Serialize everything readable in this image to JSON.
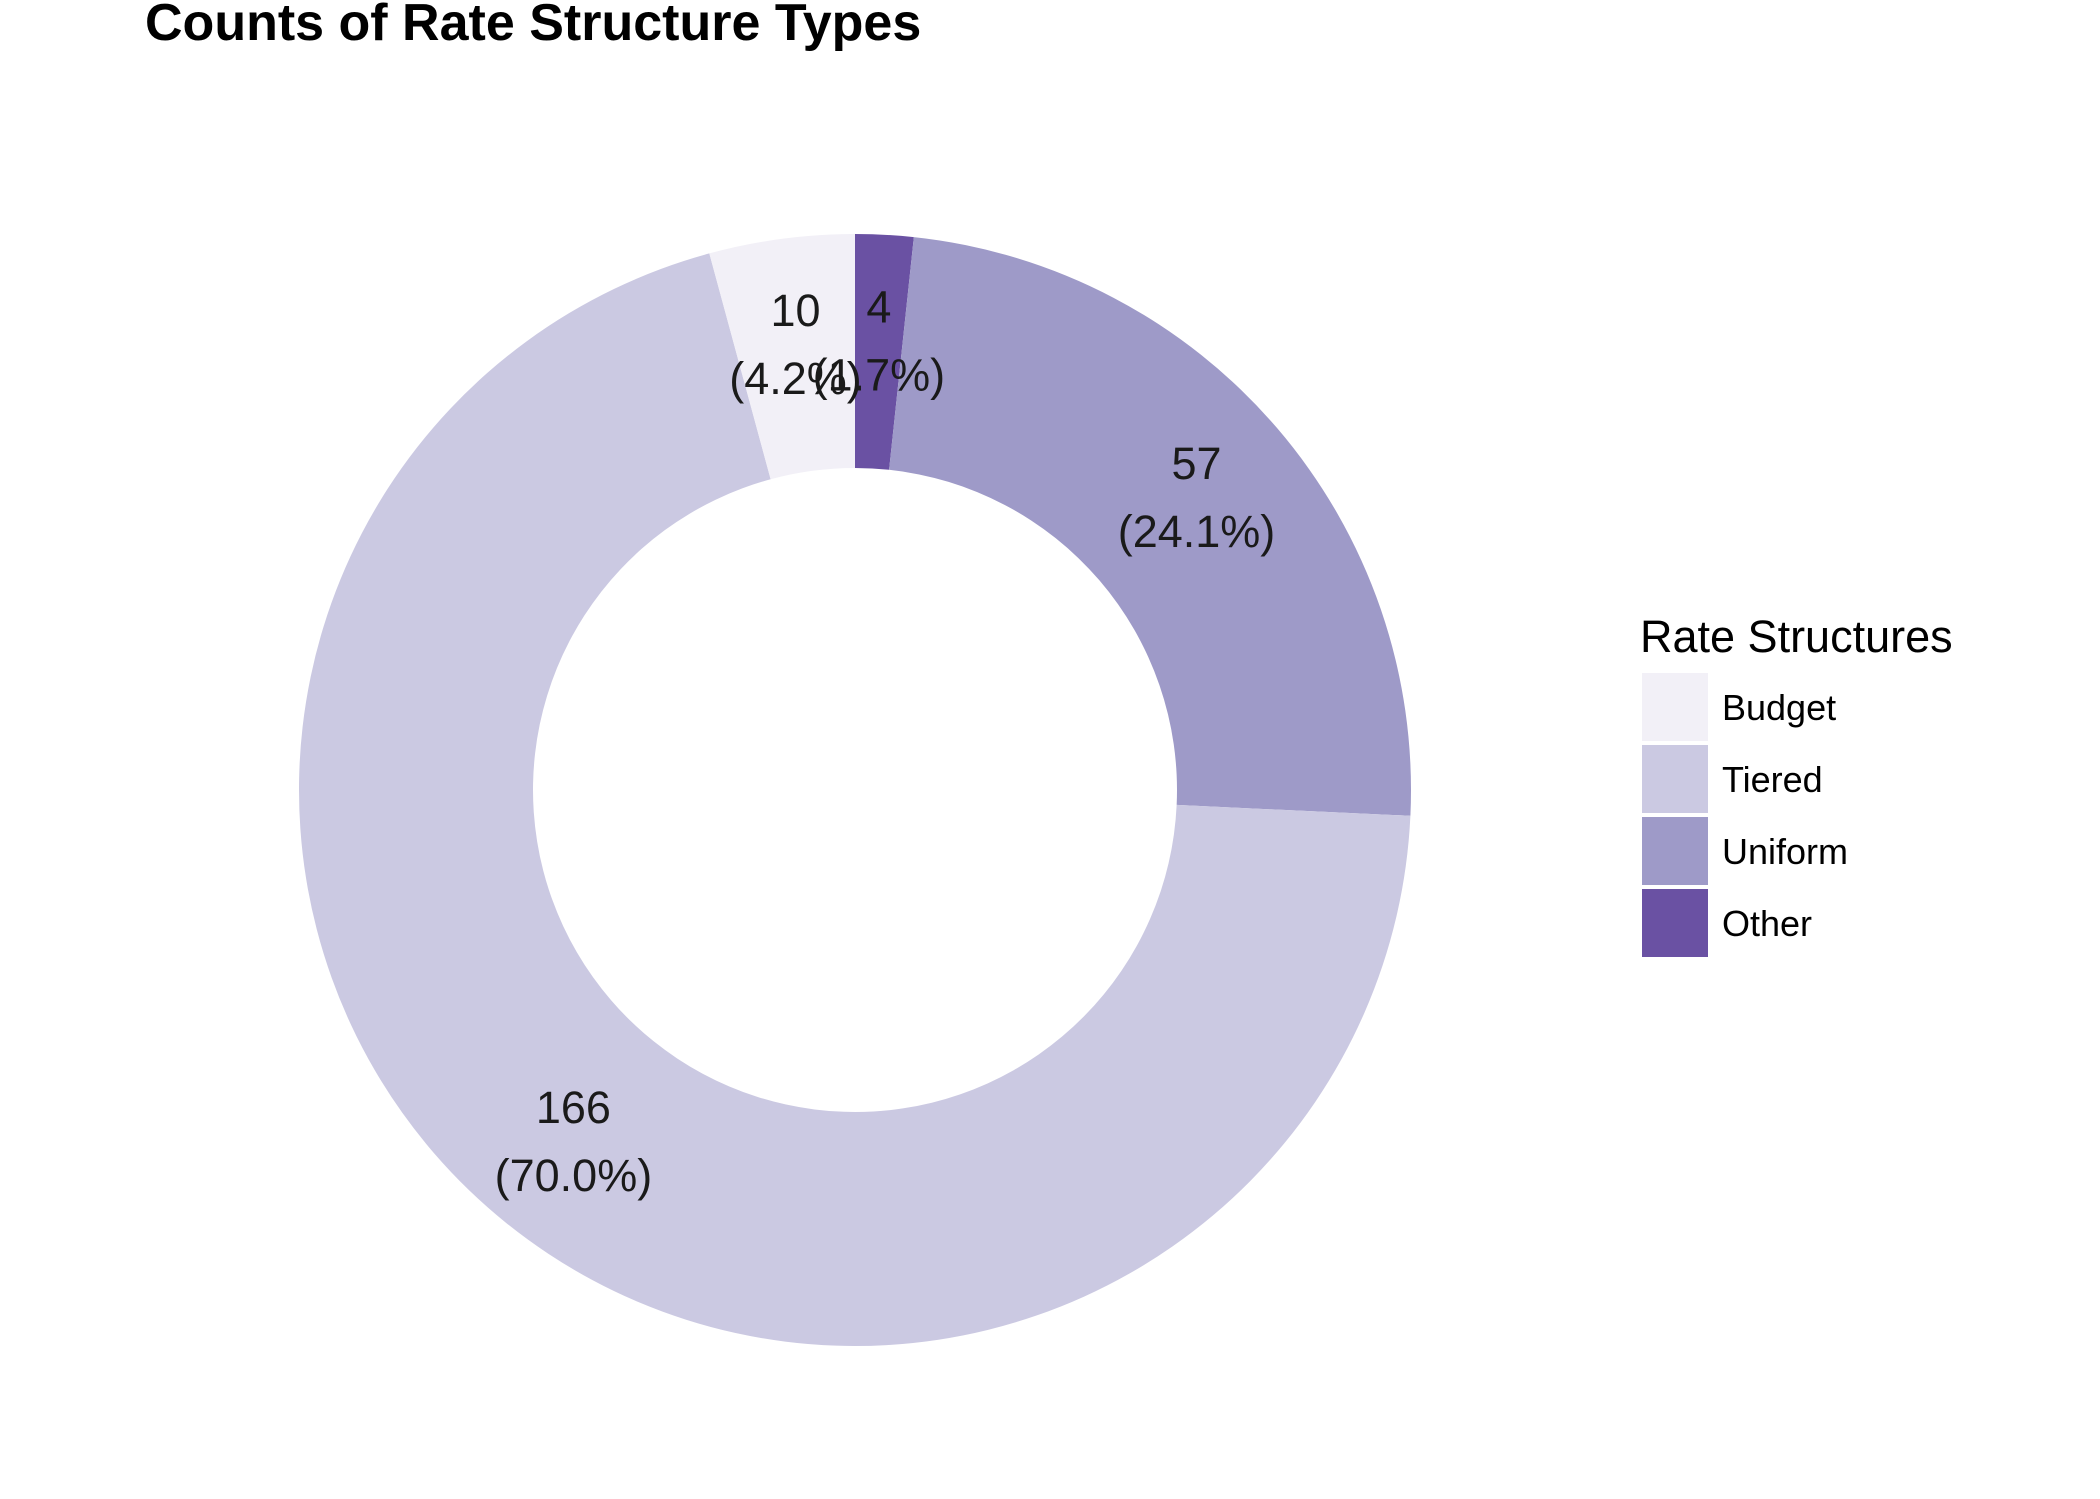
{
  "chart_data": {
    "type": "pie",
    "variant": "donut",
    "title": "Counts of Rate Structure Types",
    "legend": {
      "title": "Rate Structures",
      "placement": "right"
    },
    "slices": [
      {
        "name": "Budget",
        "value": 10,
        "percent_label": "(4.2%)",
        "color": "#f2f0f7"
      },
      {
        "name": "Tiered",
        "value": 166,
        "percent_label": "(70.0%)",
        "color": "#cbc9e2"
      },
      {
        "name": "Uniform",
        "value": 57,
        "percent_label": "(24.1%)",
        "color": "#9e9ac8"
      },
      {
        "name": "Other",
        "value": 4,
        "percent_label": "(1.7%)",
        "color": "#6a51a3"
      }
    ]
  }
}
